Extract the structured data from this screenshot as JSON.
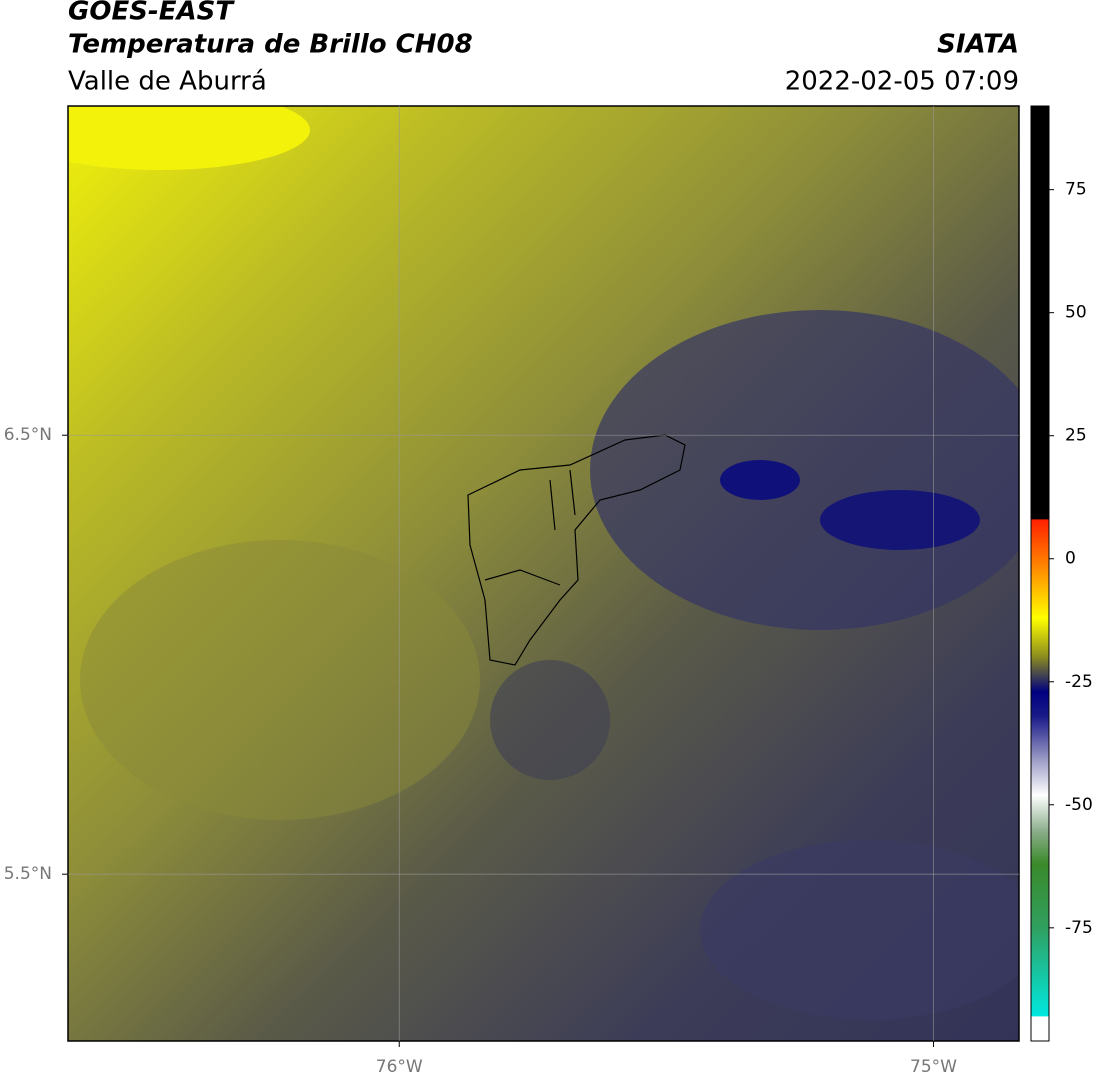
{
  "header": {
    "title": "GOES-EAST",
    "subtitle": "Temperatura de Brillo CH08",
    "region": "Valle de Aburrá",
    "source": "SIATA",
    "datetime": "2022-02-05 07:09"
  },
  "map": {
    "xlim": [
      -76.62,
      -74.84
    ],
    "ylim": [
      5.12,
      7.25
    ],
    "xticks": [
      {
        "value": -76,
        "label": "76°W"
      },
      {
        "value": -75,
        "label": "75°W"
      }
    ],
    "yticks": [
      {
        "value": 6.5,
        "label": "6.5°N"
      },
      {
        "value": 5.5,
        "label": "5.5°N"
      }
    ],
    "grid": true
  },
  "colorbar": {
    "lim": [
      -98,
      92
    ],
    "ticks": [
      75,
      50,
      25,
      0,
      -25,
      -50,
      -75
    ],
    "stops": [
      {
        "value": 92,
        "color": "#000000"
      },
      {
        "value": 8,
        "color": "#000000"
      },
      {
        "value": 8,
        "color": "#ff2000"
      },
      {
        "value": -2,
        "color": "#ff8c00"
      },
      {
        "value": -12,
        "color": "#ffff00"
      },
      {
        "value": -20,
        "color": "#8a8a20"
      },
      {
        "value": -27,
        "color": "#000080"
      },
      {
        "value": -32,
        "color": "#1a1a8a"
      },
      {
        "value": -40,
        "color": "#9090c0"
      },
      {
        "value": -48,
        "color": "#ffffff"
      },
      {
        "value": -55,
        "color": "#90b090"
      },
      {
        "value": -62,
        "color": "#3a8a2a"
      },
      {
        "value": -75,
        "color": "#30a060"
      },
      {
        "value": -93,
        "color": "#00e8e0"
      },
      {
        "value": -93,
        "color": "#ffffff"
      },
      {
        "value": -98,
        "color": "#ffffff"
      }
    ]
  }
}
